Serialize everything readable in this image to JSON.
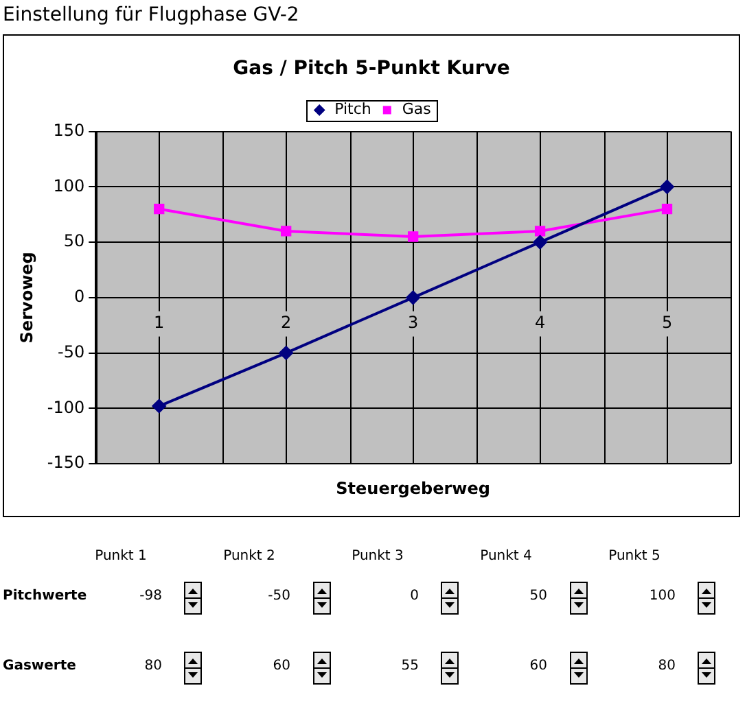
{
  "chart_data": {
    "type": "line",
    "title": "Gas / Pitch 5-Punkt Kurve",
    "subtitle": "Einstellung für Flugphase GV-2",
    "xlabel": "Steuergeberweg",
    "ylabel": "Servoweg",
    "categories": [
      "1",
      "2",
      "3",
      "4",
      "5"
    ],
    "series": [
      {
        "name": "Pitch",
        "color": "#000080",
        "marker": "diamond",
        "values": [
          -98,
          -50,
          0,
          50,
          100
        ]
      },
      {
        "name": "Gas",
        "color": "#ff00ff",
        "marker": "square",
        "values": [
          80,
          60,
          55,
          60,
          80
        ]
      }
    ],
    "ylim": [
      -150,
      150
    ],
    "yticks": [
      -150,
      -100,
      -50,
      0,
      50,
      100,
      150
    ],
    "grid": true,
    "legend": "top",
    "line_style": "solid",
    "data_labels": true,
    "annotations": [
      "Punkt 1",
      "Punkt 2",
      "Punkt 3",
      "Punkt 4",
      "Punkt 5",
      "Pitchwerte",
      "Gaswerte"
    ]
  }
}
